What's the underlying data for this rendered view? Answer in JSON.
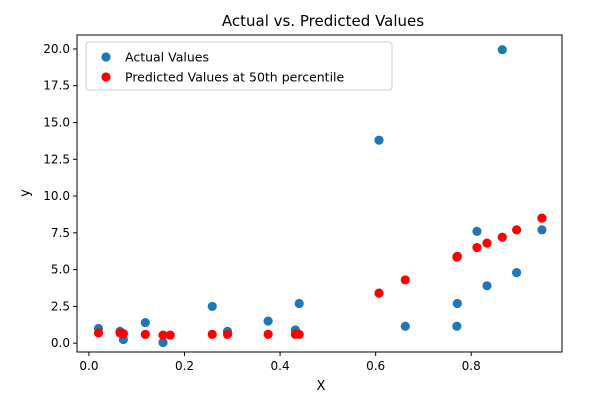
{
  "chart_data": {
    "type": "scatter",
    "title": "Actual vs. Predicted Values",
    "xlabel": "X",
    "ylabel": "y",
    "xlim": [
      -0.025,
      0.99
    ],
    "ylim": [
      -0.6,
      20.95
    ],
    "xticks": [
      0.0,
      0.2,
      0.4,
      0.6,
      0.8
    ],
    "xtick_labels": [
      "0.0",
      "0.2",
      "0.4",
      "0.6",
      "0.8"
    ],
    "yticks": [
      0.0,
      2.5,
      5.0,
      7.5,
      10.0,
      12.5,
      15.0,
      17.5,
      20.0
    ],
    "ytick_labels": [
      "0.0",
      "2.5",
      "5.0",
      "7.5",
      "10.0",
      "12.5",
      "15.0",
      "17.5",
      "20.0"
    ],
    "grid": false,
    "legend_position": "top-left",
    "series": [
      {
        "name": "Actual Values",
        "color": "#1f77b4",
        "points": [
          {
            "x": 0.02,
            "y": 1.0
          },
          {
            "x": 0.065,
            "y": 0.8
          },
          {
            "x": 0.072,
            "y": 0.25
          },
          {
            "x": 0.118,
            "y": 1.4
          },
          {
            "x": 0.155,
            "y": 0.05
          },
          {
            "x": 0.258,
            "y": 2.5
          },
          {
            "x": 0.29,
            "y": 0.8
          },
          {
            "x": 0.375,
            "y": 1.5
          },
          {
            "x": 0.432,
            "y": 0.9
          },
          {
            "x": 0.44,
            "y": 2.7
          },
          {
            "x": 0.607,
            "y": 13.8
          },
          {
            "x": 0.662,
            "y": 1.15
          },
          {
            "x": 0.77,
            "y": 1.15
          },
          {
            "x": 0.771,
            "y": 2.7
          },
          {
            "x": 0.812,
            "y": 7.6
          },
          {
            "x": 0.833,
            "y": 3.9
          },
          {
            "x": 0.865,
            "y": 19.95
          },
          {
            "x": 0.895,
            "y": 4.8
          },
          {
            "x": 0.948,
            "y": 7.7
          }
        ]
      },
      {
        "name": "Predicted Values at 50th percentile",
        "color": "#ff0000",
        "points": [
          {
            "x": 0.02,
            "y": 0.7
          },
          {
            "x": 0.065,
            "y": 0.7
          },
          {
            "x": 0.072,
            "y": 0.65
          },
          {
            "x": 0.118,
            "y": 0.6
          },
          {
            "x": 0.155,
            "y": 0.55
          },
          {
            "x": 0.17,
            "y": 0.55
          },
          {
            "x": 0.258,
            "y": 0.6
          },
          {
            "x": 0.29,
            "y": 0.6
          },
          {
            "x": 0.375,
            "y": 0.6
          },
          {
            "x": 0.432,
            "y": 0.6
          },
          {
            "x": 0.44,
            "y": 0.6
          },
          {
            "x": 0.607,
            "y": 3.4
          },
          {
            "x": 0.662,
            "y": 4.3
          },
          {
            "x": 0.77,
            "y": 5.85
          },
          {
            "x": 0.771,
            "y": 5.9
          },
          {
            "x": 0.812,
            "y": 6.5
          },
          {
            "x": 0.833,
            "y": 6.8
          },
          {
            "x": 0.865,
            "y": 7.2
          },
          {
            "x": 0.895,
            "y": 7.7
          },
          {
            "x": 0.948,
            "y": 8.5
          }
        ]
      }
    ]
  }
}
